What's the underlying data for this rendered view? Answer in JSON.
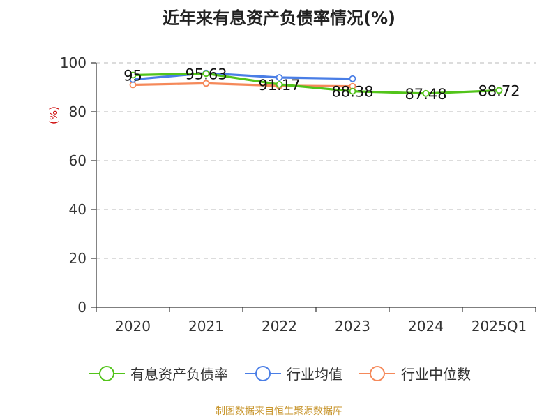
{
  "chart_data": {
    "type": "line",
    "title": "近年来有息资产负债率情况(%)",
    "ylabel": "(%)",
    "xlabel": "",
    "ylim": [
      0,
      100
    ],
    "yticks": [
      0,
      20,
      40,
      60,
      80,
      100
    ],
    "categories": [
      "2020",
      "2021",
      "2022",
      "2023",
      "2024",
      "2025Q1"
    ],
    "grid": "horizontal-dashed",
    "legend_position": "bottom",
    "series": [
      {
        "name": "有息资产负债率",
        "color": "#52c41a",
        "values": [
          95,
          95.63,
          91.17,
          88.38,
          87.48,
          88.72
        ],
        "labels": [
          "95",
          "95.63",
          "91.17",
          "88.38",
          "87.48",
          "88.72"
        ]
      },
      {
        "name": "行业均值",
        "color": "#4a7ee6",
        "values": [
          93.2,
          95.8,
          94.0,
          93.5,
          null,
          null
        ]
      },
      {
        "name": "行业中位数",
        "color": "#f5895a",
        "values": [
          91.0,
          91.6,
          90.6,
          90.4,
          null,
          null
        ]
      }
    ],
    "ylabel_color": "#cc0000"
  },
  "source_note": "制图数据来自恒生聚源数据库"
}
